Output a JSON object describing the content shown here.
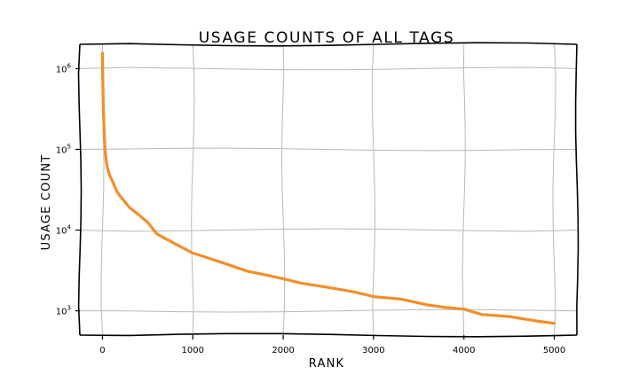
{
  "chart_data": {
    "type": "line",
    "title": "USAGE COUNTS OF ALL TAGS",
    "xlabel": "RANK",
    "ylabel": "USAGE COUNT",
    "xlim": [
      -250,
      5250
    ],
    "ylim": [
      500,
      2000000
    ],
    "yscale": "log",
    "grid": true,
    "x_ticks": [
      {
        "value": 0,
        "label": "0"
      },
      {
        "value": 1000,
        "label": "1000"
      },
      {
        "value": 2000,
        "label": "2000"
      },
      {
        "value": 3000,
        "label": "3000"
      },
      {
        "value": 4000,
        "label": "4000"
      },
      {
        "value": 5000,
        "label": "5000"
      }
    ],
    "y_ticks": [
      {
        "value": 1000,
        "base": "10",
        "exp": "3"
      },
      {
        "value": 10000,
        "base": "10",
        "exp": "4"
      },
      {
        "value": 100000,
        "base": "10",
        "exp": "5"
      },
      {
        "value": 1000000,
        "base": "10",
        "exp": "6"
      }
    ],
    "series": [
      {
        "color": "#f28e2b",
        "x": [
          0,
          5,
          10,
          20,
          30,
          50,
          80,
          120,
          160,
          200,
          300,
          400,
          500,
          600,
          800,
          1000,
          1200,
          1400,
          1600,
          1800,
          2000,
          2200,
          2500,
          2800,
          3000,
          3300,
          3600,
          3800,
          4000,
          4200,
          4500,
          4800,
          5000
        ],
        "y": [
          1550000,
          600000,
          300000,
          150000,
          95000,
          62000,
          48000,
          38000,
          30000,
          26000,
          19000,
          15500,
          12500,
          9000,
          6800,
          5200,
          4400,
          3700,
          3100,
          2800,
          2500,
          2200,
          1950,
          1700,
          1500,
          1400,
          1180,
          1100,
          1050,
          900,
          850,
          750,
          700
        ]
      }
    ]
  }
}
